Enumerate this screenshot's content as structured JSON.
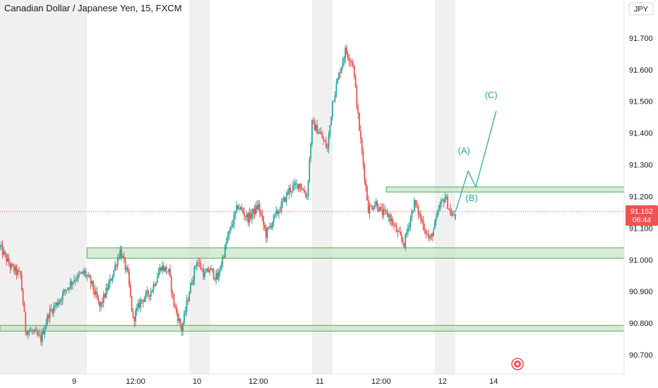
{
  "header": {
    "title": "Canadian Dollar / Japanese Yen, 15, FXCM",
    "currency_badge": "JPY"
  },
  "colors": {
    "up": "#26a69a",
    "down": "#ef5350",
    "zone_fill": "#c8e6c9",
    "zone_stroke": "#4caf50",
    "price_tag": "#ef5350",
    "session_shade": "#f0f0f0"
  },
  "chart_data": {
    "type": "candlestick",
    "title": "Canadian Dollar / Japanese Yen, 15, FXCM",
    "y_axis": {
      "side": "right",
      "ylim": [
        90.64,
        91.82
      ],
      "ticks": [
        "91.700",
        "91.600",
        "91.500",
        "91.400",
        "91.300",
        "91.200",
        "91.100",
        "91.000",
        "90.900",
        "90.800",
        "90.700"
      ],
      "tick_values": [
        91.7,
        91.6,
        91.5,
        91.4,
        91.3,
        91.2,
        91.1,
        91.0,
        90.9,
        90.8,
        90.7
      ]
    },
    "x_axis": {
      "range_hours": [
        -14.5,
        107.5
      ],
      "ticks": [
        {
          "label": "9",
          "hour": 0
        },
        {
          "label": "12:00",
          "hour": 12
        },
        {
          "label": "10",
          "hour": 24
        },
        {
          "label": "12:00",
          "hour": 36
        },
        {
          "label": "11",
          "hour": 48
        },
        {
          "label": "12:00",
          "hour": 60
        },
        {
          "label": "12",
          "hour": 72
        },
        {
          "label": "14",
          "hour": 82
        }
      ]
    },
    "last_price": {
      "value": 91.152,
      "label": "91.152",
      "countdown": "06:44"
    },
    "price_path": [
      [
        -14.5,
        91.04
      ],
      [
        -12.5,
        90.98
      ],
      [
        -10.5,
        90.95
      ],
      [
        -9.5,
        90.78
      ],
      [
        -8,
        90.77
      ],
      [
        -6.5,
        90.75
      ],
      [
        -5,
        90.83
      ],
      [
        -3,
        90.87
      ],
      [
        -1.5,
        90.91
      ],
      [
        0,
        90.94
      ],
      [
        2,
        90.96
      ],
      [
        3.5,
        90.92
      ],
      [
        5,
        90.85
      ],
      [
        7,
        90.93
      ],
      [
        9,
        91.03
      ],
      [
        10.5,
        90.95
      ],
      [
        11.5,
        90.81
      ],
      [
        13,
        90.87
      ],
      [
        15,
        90.9
      ],
      [
        17,
        90.98
      ],
      [
        18.5,
        90.96
      ],
      [
        19.5,
        90.86
      ],
      [
        21,
        90.78
      ],
      [
        22.5,
        90.9
      ],
      [
        24,
        91.0
      ],
      [
        25.5,
        90.95
      ],
      [
        26.5,
        90.97
      ],
      [
        28,
        90.94
      ],
      [
        30,
        91.07
      ],
      [
        32,
        91.17
      ],
      [
        34,
        91.13
      ],
      [
        36,
        91.17
      ],
      [
        37.5,
        91.08
      ],
      [
        39,
        91.13
      ],
      [
        40.5,
        91.17
      ],
      [
        42,
        91.22
      ],
      [
        44,
        91.24
      ],
      [
        45.5,
        91.2
      ],
      [
        46.5,
        91.43
      ],
      [
        48,
        91.4
      ],
      [
        49.5,
        91.35
      ],
      [
        50.5,
        91.5
      ],
      [
        52,
        91.6
      ],
      [
        53,
        91.66
      ],
      [
        54.5,
        91.62
      ],
      [
        55.5,
        91.45
      ],
      [
        56.5,
        91.3
      ],
      [
        57.5,
        91.16
      ],
      [
        59,
        91.18
      ],
      [
        60,
        91.15
      ],
      [
        61.5,
        91.14
      ],
      [
        63,
        91.09
      ],
      [
        64.5,
        91.05
      ],
      [
        65.5,
        91.12
      ],
      [
        66.5,
        91.18
      ],
      [
        68,
        91.12
      ],
      [
        69.5,
        91.06
      ],
      [
        70.5,
        91.11
      ],
      [
        71.5,
        91.17
      ],
      [
        72.5,
        91.2
      ],
      [
        73.5,
        91.15
      ],
      [
        74.5,
        91.13
      ]
    ],
    "session_shading": [
      [
        -14.5,
        2.5
      ],
      [
        22.5,
        26.5
      ],
      [
        46.5,
        50.5
      ],
      [
        70.5,
        74.5
      ]
    ],
    "zones": [
      {
        "name": "zone-91000",
        "y_low": 91.005,
        "y_high": 91.038,
        "x_start": 2.5,
        "x_end": 107.5
      },
      {
        "name": "zone-91200",
        "y_low": 91.214,
        "y_high": 91.23,
        "x_start": 61.0,
        "x_end": 107.5
      },
      {
        "name": "zone-90800",
        "y_low": 90.775,
        "y_high": 90.793,
        "x_start": -14.5,
        "x_end": 107.5
      }
    ],
    "wave_projection": {
      "points": [
        [
          74.5,
          91.15
        ],
        [
          77.0,
          91.28
        ],
        [
          78.5,
          91.23
        ],
        [
          82.5,
          91.47
        ]
      ],
      "labels": [
        {
          "text": "(A)",
          "x": 76.2,
          "y": 91.335
        },
        {
          "text": "(B)",
          "x": 77.7,
          "y": 91.185
        },
        {
          "text": "(C)",
          "x": 81.5,
          "y": 91.51
        }
      ]
    }
  }
}
